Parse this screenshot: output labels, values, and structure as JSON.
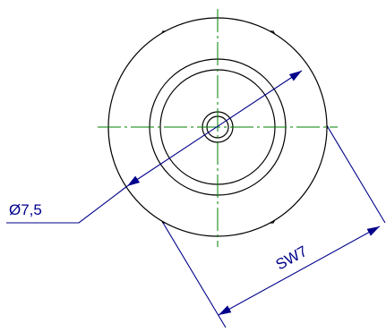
{
  "drawing": {
    "diameter_label": "Ø7,5",
    "wrench_size_label": "SW7"
  },
  "colors": {
    "outline": "#000000",
    "centerline": "#008000",
    "dimension": "#00008B"
  }
}
